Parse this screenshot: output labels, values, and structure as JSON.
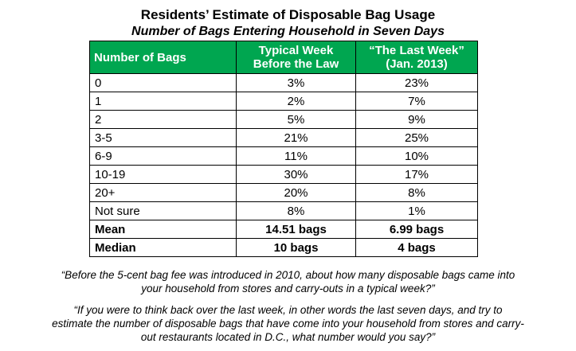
{
  "chart_data": {
    "type": "table",
    "title": "Residents’ Estimate of Disposable Bag Usage",
    "subtitle": "Number of Bags Entering Household in Seven Days",
    "columns": [
      "Number of Bags",
      "Typical Week Before the Law",
      "“The Last Week” (Jan. 2013)"
    ],
    "header": {
      "col0": "Number of Bags",
      "col1_line1": "Typical Week",
      "col1_line2": "Before the Law",
      "col2_line1": "“The Last Week”",
      "col2_line2": "(Jan. 2013)"
    },
    "rows": [
      {
        "label": "0",
        "before": "3%",
        "last": "23%"
      },
      {
        "label": "1",
        "before": "2%",
        "last": "7%"
      },
      {
        "label": "2",
        "before": "5%",
        "last": "9%"
      },
      {
        "label": "3-5",
        "before": "21%",
        "last": "25%"
      },
      {
        "label": "6-9",
        "before": "11%",
        "last": "10%"
      },
      {
        "label": "10-19",
        "before": "30%",
        "last": "17%"
      },
      {
        "label": "20+",
        "before": "20%",
        "last": "8%"
      },
      {
        "label": "Not sure",
        "before": "8%",
        "last": "1%"
      }
    ],
    "summary": [
      {
        "label": "Mean",
        "before": "14.51 bags",
        "last": "6.99 bags"
      },
      {
        "label": "Median",
        "before": "10 bags",
        "last": "4 bags"
      }
    ]
  },
  "notes": {
    "quote1_line1": "“Before the 5-cent bag fee was introduced in 2010, about how many disposable bags came into",
    "quote1_line2": "your household from stores and carry-outs in a typical week?”",
    "quote2_line1": "“If you were to think back over the last week, in other words the last seven days, and try to",
    "quote2_line2": "estimate the number of disposable bags that have come into your household from stores and carry-",
    "quote2_line3": "out restaurants located in D.C., what number would you say?”"
  },
  "colors": {
    "header_bg": "#00a650",
    "header_text": "#ffffff"
  }
}
